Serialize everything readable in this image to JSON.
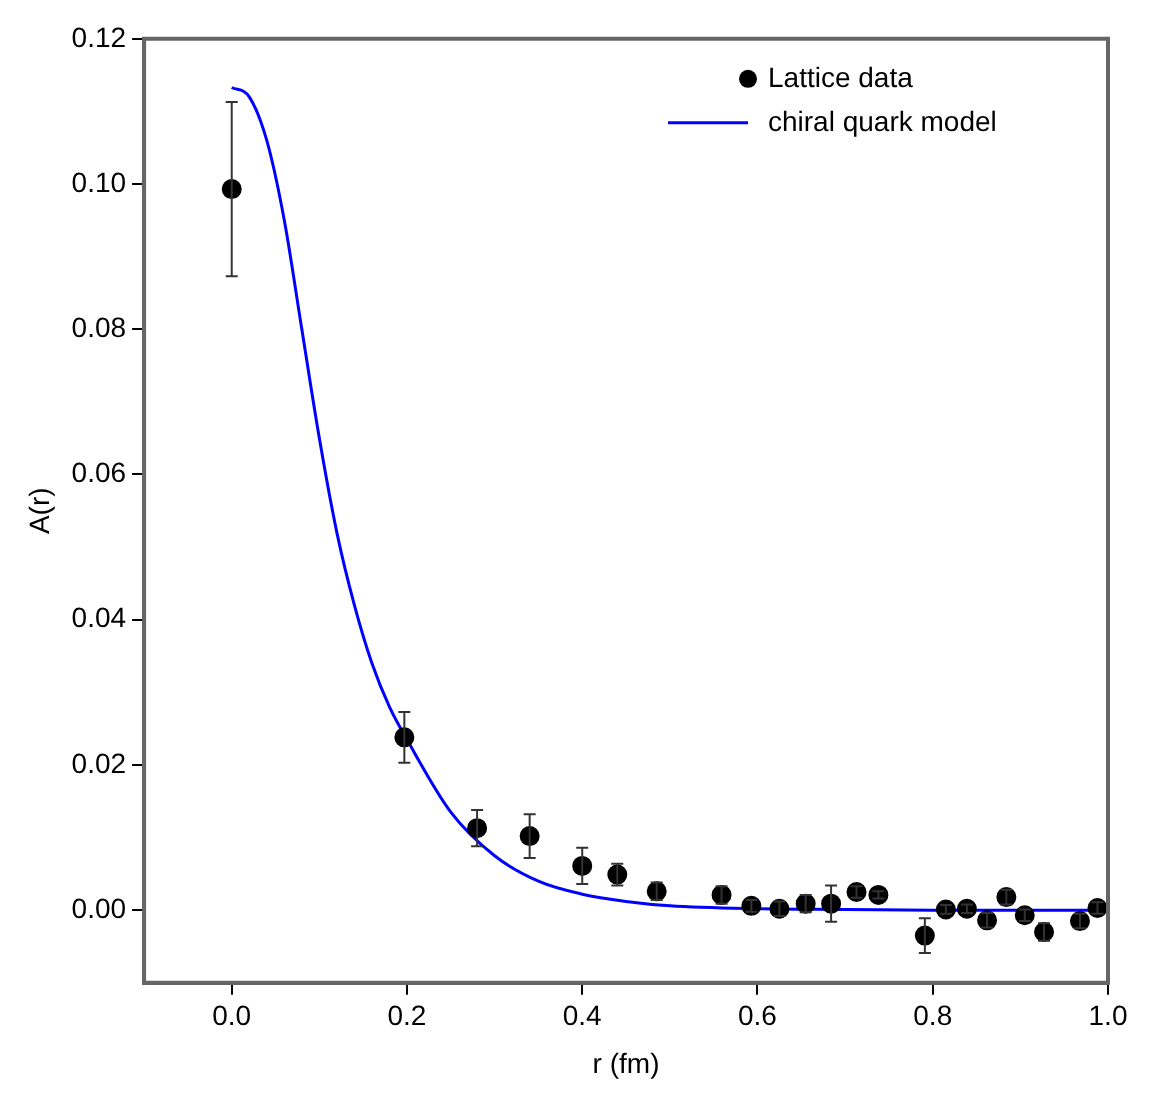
{
  "chart_data": {
    "type": "scatter",
    "xlabel": "r (fm)",
    "ylabel": "A(r)",
    "xlim": [
      -0.1,
      1.0
    ],
    "xticks": [
      {
        "value": 0,
        "label": "0.0"
      },
      0.2,
      0.4,
      0.6,
      0.8,
      {
        "value": 1,
        "label": "1.0"
      }
    ],
    "ylim": [
      -0.01,
      0.12
    ],
    "yticks": [
      {
        "value": 0,
        "label": "0.00"
      },
      0.02,
      0.04,
      0.06,
      0.08,
      {
        "value": 0.1,
        "label": "0.10"
      },
      0.12
    ],
    "grid": false,
    "legend": "top right",
    "marker": "circle",
    "series": [
      {
        "name": "Lattice data",
        "type": "scatter",
        "color": "#000000",
        "x": [
          0,
          0.197,
          0.28,
          0.34,
          0.4,
          0.44,
          0.485,
          0.559,
          0.593,
          0.625,
          0.655,
          0.684,
          0.713,
          0.738,
          0.791,
          0.815,
          0.839,
          0.862,
          0.884,
          0.905,
          0.927,
          0.968,
          0.988
        ],
        "values": [
          0.0993,
          0.0238,
          0.0113,
          0.0102,
          0.0061,
          0.0049,
          0.0026,
          0.0021,
          0.0006,
          0.0002,
          0.0009,
          0.0009,
          0.0025,
          0.0021,
          -0.0035,
          0.0001,
          0.0002,
          -0.0014,
          0.0018,
          -0.0007,
          -0.003,
          -0.0015,
          0.0003
        ],
        "errors": [
          0.012,
          0.0035,
          0.0025,
          0.003,
          0.0025,
          0.0015,
          0.0012,
          0.0012,
          0.0008,
          0.001,
          0.0012,
          0.0025,
          0.0008,
          0.0005,
          0.0024,
          0.0006,
          0.0006,
          0.001,
          0.001,
          0.0008,
          0.0012,
          0.001,
          0.0008
        ]
      },
      {
        "name": "chiral quark model",
        "type": "line",
        "marker": "none",
        "color": "#0000ff",
        "x": [
          0,
          0.02,
          0.04,
          0.06,
          0.08,
          0.1,
          0.12,
          0.14,
          0.16,
          0.18,
          0.2,
          0.25,
          0.3,
          0.35,
          0.4,
          0.45,
          0.5,
          0.6,
          0.7,
          0.8,
          0.9,
          1.0
        ],
        "values": [
          0.1133,
          0.112,
          0.106,
          0.095,
          0.08,
          0.065,
          0.052,
          0.042,
          0.034,
          0.028,
          0.0235,
          0.0135,
          0.0075,
          0.004,
          0.0022,
          0.0012,
          0.0006,
          0.0002,
          0.0001,
          0,
          0,
          0
        ]
      }
    ]
  }
}
